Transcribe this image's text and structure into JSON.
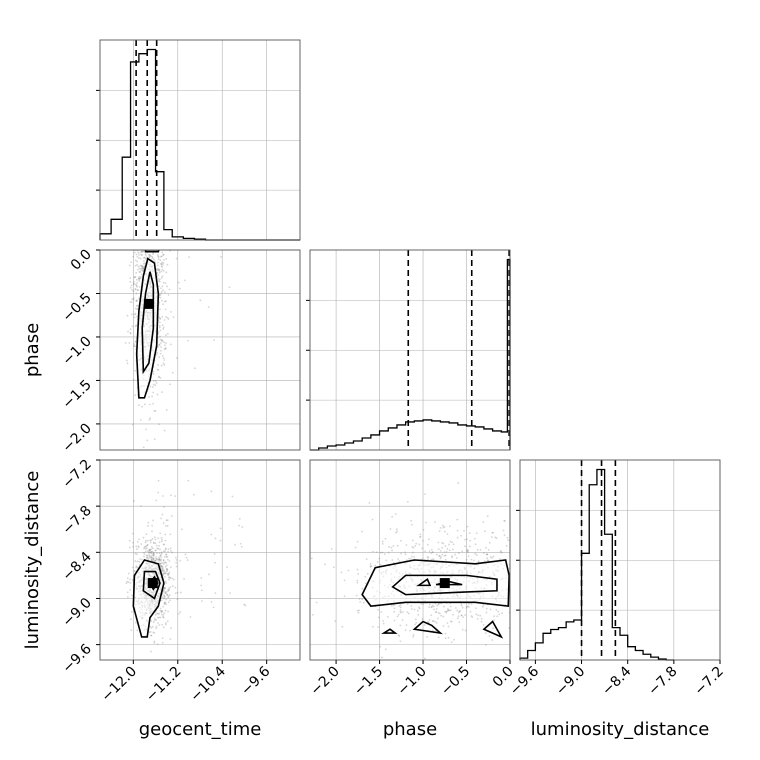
{
  "chart_data": {
    "type": "corner",
    "parameters": [
      "geocent_time",
      "phase",
      "luminosity_distance"
    ],
    "grid": true,
    "axes": {
      "geocent_time": {
        "range": [
          -12.6,
          -9.0
        ],
        "ticks": [
          -12.0,
          -11.2,
          -10.4,
          -9.6
        ],
        "tick_labels": [
          "−12.0",
          "−11.2",
          "−10.4",
          "−9.6"
        ]
      },
      "phase": {
        "range": [
          -2.3,
          0.0
        ],
        "ticks": [
          -2.0,
          -1.5,
          -1.0,
          -0.5,
          0.0
        ],
        "tick_labels": [
          "−2.0",
          "−1.5",
          "−1.0",
          "−0.5",
          "0.0"
        ]
      },
      "luminosity_distance": {
        "range": [
          -9.8,
          -7.2
        ],
        "ticks": [
          -9.6,
          -9.0,
          -8.4,
          -7.8,
          -7.2
        ],
        "tick_labels": [
          "−9.6",
          "−9.0",
          "−8.4",
          "−7.8",
          "−7.2"
        ]
      }
    },
    "histograms": [
      {
        "param": "geocent_time",
        "bin_edges": [
          -12.6,
          -12.4,
          -12.2,
          -12.05,
          -11.9,
          -11.75,
          -11.6,
          -11.45,
          -11.3,
          -11.1,
          -10.9,
          -10.7,
          -10.5,
          -9.0
        ],
        "counts": [
          0.03,
          0.1,
          0.4,
          0.86,
          0.9,
          0.92,
          0.33,
          0.05,
          0.015,
          0.008,
          0.004,
          0.0,
          0.0
        ],
        "quantiles": [
          -11.95,
          -11.75,
          -11.58
        ]
      },
      {
        "param": "phase",
        "bin_edges": [
          -2.3,
          -2.2,
          -2.1,
          -2.0,
          -1.9,
          -1.8,
          -1.7,
          -1.6,
          -1.5,
          -1.4,
          -1.3,
          -1.2,
          -1.1,
          -1.0,
          -0.9,
          -0.8,
          -0.7,
          -0.6,
          -0.5,
          -0.4,
          -0.3,
          -0.2,
          -0.1,
          -0.03,
          0.0
        ],
        "counts": [
          0.0,
          0.01,
          0.02,
          0.025,
          0.035,
          0.045,
          0.06,
          0.075,
          0.095,
          0.11,
          0.125,
          0.14,
          0.145,
          0.15,
          0.145,
          0.14,
          0.135,
          0.125,
          0.12,
          0.115,
          0.105,
          0.095,
          0.09,
          0.95
        ],
        "quantiles": [
          -1.17,
          -0.44,
          -0.01
        ]
      },
      {
        "param": "luminosity_distance",
        "bin_edges": [
          -9.8,
          -9.7,
          -9.6,
          -9.5,
          -9.4,
          -9.3,
          -9.2,
          -9.1,
          -9.0,
          -8.9,
          -8.8,
          -8.7,
          -8.6,
          -8.5,
          -8.4,
          -8.3,
          -8.2,
          -8.1,
          -8.0,
          -7.9,
          -7.8
        ],
        "counts": [
          0.01,
          0.05,
          0.09,
          0.14,
          0.16,
          0.17,
          0.2,
          0.21,
          0.56,
          0.92,
          1.0,
          0.66,
          0.17,
          0.13,
          0.07,
          0.05,
          0.03,
          0.015,
          0.005,
          0.0
        ],
        "quantiles": [
          -9.0,
          -8.74,
          -8.56
        ]
      }
    ],
    "joints": [
      {
        "x_param": "geocent_time",
        "y_param": "phase",
        "core": {
          "x_mean": -11.72,
          "x_sd": 0.16,
          "y_mean": -0.62,
          "y_sd": 0.55
        },
        "contours": [
          [
            [
              -11.9,
              -1.7
            ],
            [
              -11.94,
              -1.2
            ],
            [
              -11.9,
              -0.7
            ],
            [
              -11.82,
              -0.3
            ],
            [
              -11.74,
              -0.1
            ],
            [
              -11.62,
              -0.15
            ],
            [
              -11.55,
              -0.5
            ],
            [
              -11.58,
              -1.1
            ],
            [
              -11.7,
              -1.5
            ],
            [
              -11.8,
              -1.7
            ]
          ],
          [
            [
              -11.82,
              -1.4
            ],
            [
              -11.84,
              -0.9
            ],
            [
              -11.78,
              -0.5
            ],
            [
              -11.7,
              -0.25
            ],
            [
              -11.64,
              -0.4
            ],
            [
              -11.64,
              -0.9
            ],
            [
              -11.72,
              -1.3
            ]
          ],
          [
            [
              -11.78,
              -0.02
            ],
            [
              -11.55,
              -0.02
            ],
            [
              -11.54,
              0.0
            ],
            [
              -11.78,
              0.0
            ]
          ]
        ]
      },
      {
        "x_param": "geocent_time",
        "y_param": "luminosity_distance",
        "core": {
          "x_mean": -11.65,
          "x_sd": 0.17,
          "y_mean": -8.8,
          "y_sd": 0.3
        },
        "contours": [
          [
            [
              -11.85,
              -9.5
            ],
            [
              -12.0,
              -9.1
            ],
            [
              -11.98,
              -8.7
            ],
            [
              -11.8,
              -8.5
            ],
            [
              -11.55,
              -8.55
            ],
            [
              -11.45,
              -8.8
            ],
            [
              -11.55,
              -9.1
            ],
            [
              -11.7,
              -9.25
            ],
            [
              -11.75,
              -9.5
            ]
          ],
          [
            [
              -11.82,
              -8.9
            ],
            [
              -11.8,
              -8.65
            ],
            [
              -11.6,
              -8.65
            ],
            [
              -11.52,
              -8.8
            ],
            [
              -11.62,
              -9.0
            ]
          ],
          [
            [
              -11.7,
              -8.8
            ],
            [
              -11.62,
              -8.72
            ],
            [
              -11.56,
              -8.8
            ],
            [
              -11.64,
              -8.88
            ]
          ]
        ]
      },
      {
        "x_param": "phase",
        "y_param": "luminosity_distance",
        "core": {
          "x_mean": -0.75,
          "x_sd": 0.55,
          "y_mean": -8.8,
          "y_sd": 0.35
        },
        "contours": [
          [
            [
              -1.7,
              -8.95
            ],
            [
              -1.55,
              -8.6
            ],
            [
              -1.1,
              -8.5
            ],
            [
              -0.4,
              -8.55
            ],
            [
              -0.05,
              -8.5
            ],
            [
              -0.01,
              -8.7
            ],
            [
              -0.02,
              -9.1
            ],
            [
              -0.4,
              -9.05
            ],
            [
              -1.2,
              -9.05
            ],
            [
              -1.6,
              -9.1
            ]
          ],
          [
            [
              -1.35,
              -8.85
            ],
            [
              -1.2,
              -8.7
            ],
            [
              -0.5,
              -8.7
            ],
            [
              -0.15,
              -8.75
            ],
            [
              -0.15,
              -8.9
            ],
            [
              -0.6,
              -8.92
            ],
            [
              -1.2,
              -8.95
            ]
          ],
          [
            [
              -1.05,
              -8.83
            ],
            [
              -0.95,
              -8.75
            ],
            [
              -0.92,
              -8.83
            ]
          ],
          [
            [
              -0.85,
              -8.82
            ],
            [
              -0.7,
              -8.78
            ],
            [
              -0.55,
              -8.82
            ]
          ],
          [
            [
              -1.1,
              -9.4
            ],
            [
              -1.0,
              -9.3
            ],
            [
              -0.9,
              -9.35
            ],
            [
              -0.8,
              -9.45
            ]
          ],
          [
            [
              -0.3,
              -9.4
            ],
            [
              -0.2,
              -9.3
            ],
            [
              -0.1,
              -9.5
            ]
          ],
          [
            [
              -1.45,
              -9.45
            ],
            [
              -1.38,
              -9.4
            ],
            [
              -1.32,
              -9.45
            ]
          ]
        ]
      }
    ]
  }
}
